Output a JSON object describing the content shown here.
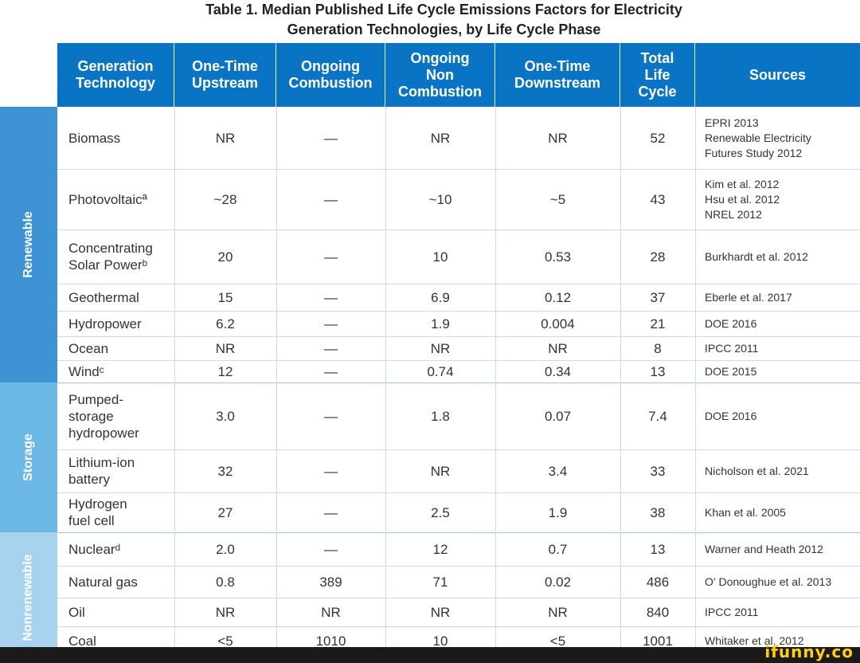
{
  "title": {
    "line1": "Table 1. Median Published Life Cycle Emissions Factors for Electricity",
    "line2": "Generation Technologies, by Life Cycle Phase"
  },
  "columns": [
    "Generation\nTechnology",
    "One-Time\nUpstream",
    "Ongoing\nCombustion",
    "Ongoing\nNon\nCombustion",
    "One-Time\nDownstream",
    "Total\nLife\nCycle",
    "Sources"
  ],
  "groups": {
    "renewable": "Renewable",
    "storage": "Storage",
    "nonrenewable": "Nonrenewable"
  },
  "rows": [
    {
      "tech": "Biomass",
      "upstream": "NR",
      "combustion": "—",
      "noncombustion": "NR",
      "downstream": "NR",
      "total": "52",
      "sources": "EPRI 2013\nRenewable Electricity\nFutures Study 2012"
    },
    {
      "tech": "Photovoltaicª",
      "upstream": "~28",
      "combustion": "—",
      "noncombustion": "~10",
      "downstream": "~5",
      "total": "43",
      "sources": "Kim et al. 2012\nHsu et al. 2012\nNREL 2012"
    },
    {
      "tech": "Concentrating\nSolar Powerᵇ",
      "upstream": "20",
      "combustion": "—",
      "noncombustion": "10",
      "downstream": "0.53",
      "total": "28",
      "sources": "Burkhardt et al. 2012"
    },
    {
      "tech": "Geothermal",
      "upstream": "15",
      "combustion": "—",
      "noncombustion": "6.9",
      "downstream": "0.12",
      "total": "37",
      "sources": "Eberle et al. 2017"
    },
    {
      "tech": "Hydropower",
      "upstream": "6.2",
      "combustion": "—",
      "noncombustion": "1.9",
      "downstream": "0.004",
      "total": "21",
      "sources": "DOE 2016"
    },
    {
      "tech": "Ocean",
      "upstream": "NR",
      "combustion": "—",
      "noncombustion": "NR",
      "downstream": "NR",
      "total": "8",
      "sources": "IPCC 2011"
    },
    {
      "tech": "Windᶜ",
      "upstream": "12",
      "combustion": "—",
      "noncombustion": "0.74",
      "downstream": "0.34",
      "total": "13",
      "sources": "DOE 2015"
    },
    {
      "tech": "Pumped-\nstorage\nhydropower",
      "upstream": "3.0",
      "combustion": "—",
      "noncombustion": "1.8",
      "downstream": "0.07",
      "total": "7.4",
      "sources": "DOE 2016"
    },
    {
      "tech": "Lithium-ion\nbattery",
      "upstream": "32",
      "combustion": "—",
      "noncombustion": "NR",
      "downstream": "3.4",
      "total": "33",
      "sources": "Nicholson et al. 2021"
    },
    {
      "tech": "Hydrogen\nfuel cell",
      "upstream": "27",
      "combustion": "—",
      "noncombustion": "2.5",
      "downstream": "1.9",
      "total": "38",
      "sources": "Khan et al. 2005"
    },
    {
      "tech": "Nuclearᵈ",
      "upstream": "2.0",
      "combustion": "—",
      "noncombustion": "12",
      "downstream": "0.7",
      "total": "13",
      "sources": "Warner and Heath 2012"
    },
    {
      "tech": "Natural gas",
      "upstream": "0.8",
      "combustion": "389",
      "noncombustion": "71",
      "downstream": "0.02",
      "total": "486",
      "sources": "O' Donoughue et al. 2013"
    },
    {
      "tech": "Oil",
      "upstream": "NR",
      "combustion": "NR",
      "noncombustion": "NR",
      "downstream": "NR",
      "total": "840",
      "sources": "IPCC 2011"
    },
    {
      "tech": "Coal",
      "upstream": "<5",
      "combustion": "1010",
      "noncombustion": "10",
      "downstream": "<5",
      "total": "1001",
      "sources": "Whitaker et al. 2012"
    }
  ],
  "watermark": "ifunny.co"
}
